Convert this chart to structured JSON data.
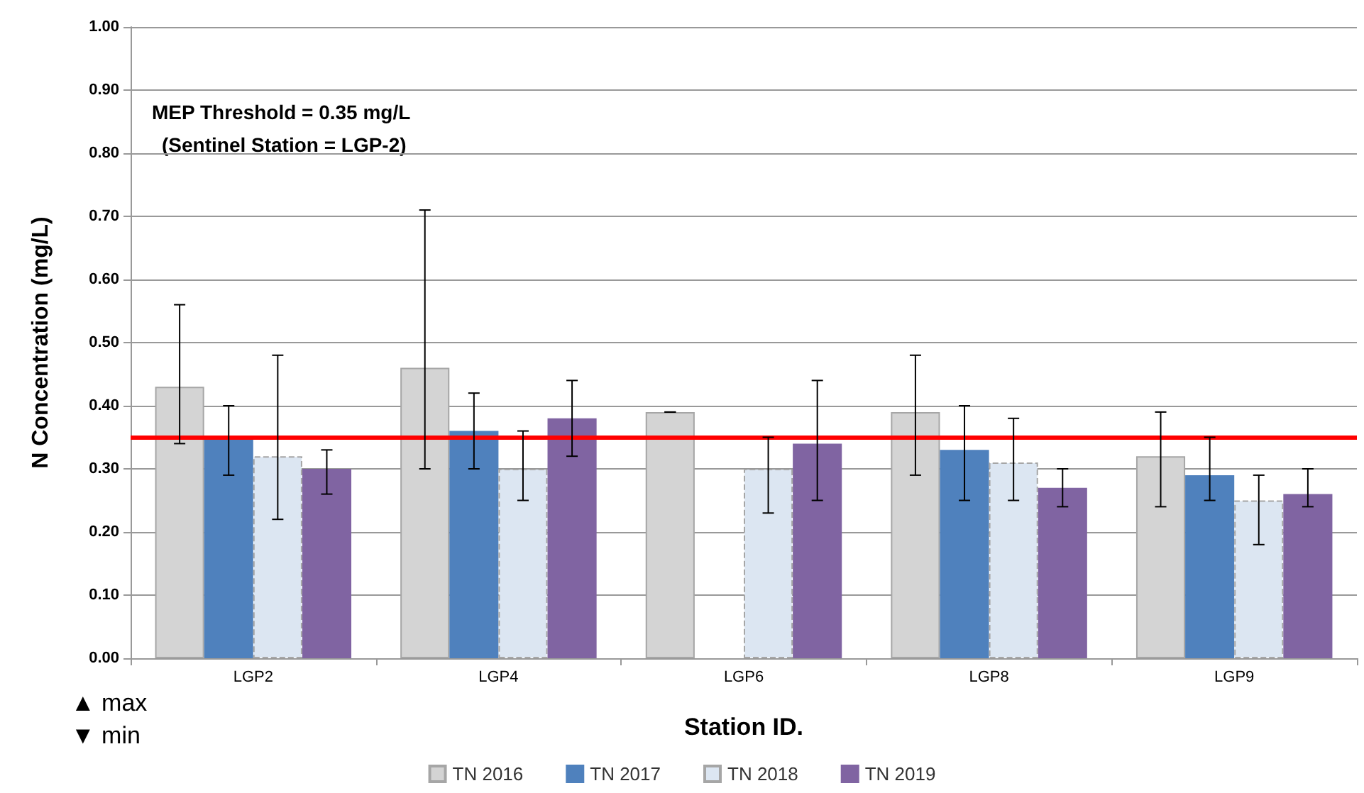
{
  "chart_data": {
    "type": "bar",
    "xlabel": "Station ID.",
    "ylabel": "N Concentration (mg/L)",
    "categories": [
      "LGP2",
      "LGP4",
      "LGP6",
      "LGP8",
      "LGP9"
    ],
    "series": [
      {
        "name": "TN 2016",
        "color": "#d4d4d4",
        "values": [
          0.43,
          0.46,
          0.39,
          0.39,
          0.32
        ],
        "errors": [
          [
            0.34,
            0.56
          ],
          [
            0.3,
            0.71
          ],
          [
            0.39,
            0.39
          ],
          [
            0.29,
            0.48
          ],
          [
            0.24,
            0.39
          ]
        ]
      },
      {
        "name": "TN 2017",
        "color": "#4f81bd",
        "values": [
          0.35,
          0.36,
          null,
          0.33,
          0.29
        ],
        "errors": [
          [
            0.29,
            0.4
          ],
          [
            0.3,
            0.42
          ],
          null,
          [
            0.25,
            0.4
          ],
          [
            0.25,
            0.35
          ]
        ]
      },
      {
        "name": "TN 2018",
        "color": "#dce6f2",
        "values": [
          0.32,
          0.3,
          0.3,
          0.31,
          0.25
        ],
        "errors": [
          [
            0.22,
            0.48
          ],
          [
            0.25,
            0.36
          ],
          [
            0.23,
            0.35
          ],
          [
            0.25,
            0.38
          ],
          [
            0.18,
            0.29
          ]
        ]
      },
      {
        "name": "TN 2019",
        "color": "#8064a2",
        "values": [
          0.3,
          0.38,
          0.34,
          0.27,
          0.26
        ],
        "errors": [
          [
            0.26,
            0.33
          ],
          [
            0.32,
            0.44
          ],
          [
            0.25,
            0.44
          ],
          [
            0.24,
            0.3
          ],
          [
            0.24,
            0.3
          ]
        ]
      }
    ],
    "ylim": [
      0,
      1
    ],
    "yticks": [
      {
        "value": 0,
        "label": "0.00"
      },
      {
        "value": 0.1,
        "label": "0.10"
      },
      {
        "value": 0.2,
        "label": "0.20"
      },
      {
        "value": 0.3,
        "label": "0.30"
      },
      {
        "value": 0.4,
        "label": "0.40"
      },
      {
        "value": 0.5,
        "label": "0.50"
      },
      {
        "value": 0.6,
        "label": "0.60"
      },
      {
        "value": 0.7,
        "label": "0.70"
      },
      {
        "value": 0.8,
        "label": "0.80"
      },
      {
        "value": 0.9,
        "label": "0.90"
      },
      {
        "value": 1,
        "label": "1.00"
      }
    ],
    "grid": "y",
    "legend": "bottom",
    "ref_lines": [
      {
        "axis": "y",
        "value": 0.35,
        "color": "#ff0000"
      }
    ],
    "annotations": [
      "MEP Threshold = 0.35 mg/L",
      "(Sentinel Station = LGP-2)",
      "▲ max",
      "▼ min"
    ]
  }
}
